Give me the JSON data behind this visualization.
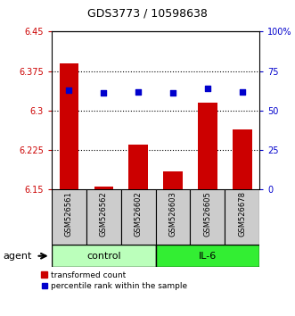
{
  "title": "GDS3773 / 10598638",
  "samples": [
    "GSM526561",
    "GSM526562",
    "GSM526602",
    "GSM526603",
    "GSM526605",
    "GSM526678"
  ],
  "bar_values": [
    6.39,
    6.155,
    6.235,
    6.185,
    6.315,
    6.265
  ],
  "dot_values": [
    63,
    61,
    62,
    61,
    64,
    62
  ],
  "ylim_left": [
    6.15,
    6.45
  ],
  "ylim_right": [
    0,
    100
  ],
  "yticks_left": [
    6.15,
    6.225,
    6.3,
    6.375,
    6.45
  ],
  "ytick_labels_left": [
    "6.15",
    "6.225",
    "6.3",
    "6.375",
    "6.45"
  ],
  "yticks_right": [
    0,
    25,
    50,
    75,
    100
  ],
  "ytick_labels_right": [
    "0",
    "25",
    "50",
    "75",
    "100%"
  ],
  "bar_color": "#cc0000",
  "dot_color": "#0000cc",
  "bar_base": 6.15,
  "control_color": "#bbffbb",
  "il6_color": "#33ee33",
  "label_bg_color": "#cccccc",
  "legend_bar_label": "transformed count",
  "legend_dot_label": "percentile rank within the sample",
  "agent_label": "agent",
  "control_label": "control",
  "il6_label": "IL-6",
  "background_color": "#ffffff",
  "tick_color_left": "#cc0000",
  "tick_color_right": "#0000cc",
  "grid_ticks": [
    6.225,
    6.3,
    6.375
  ]
}
